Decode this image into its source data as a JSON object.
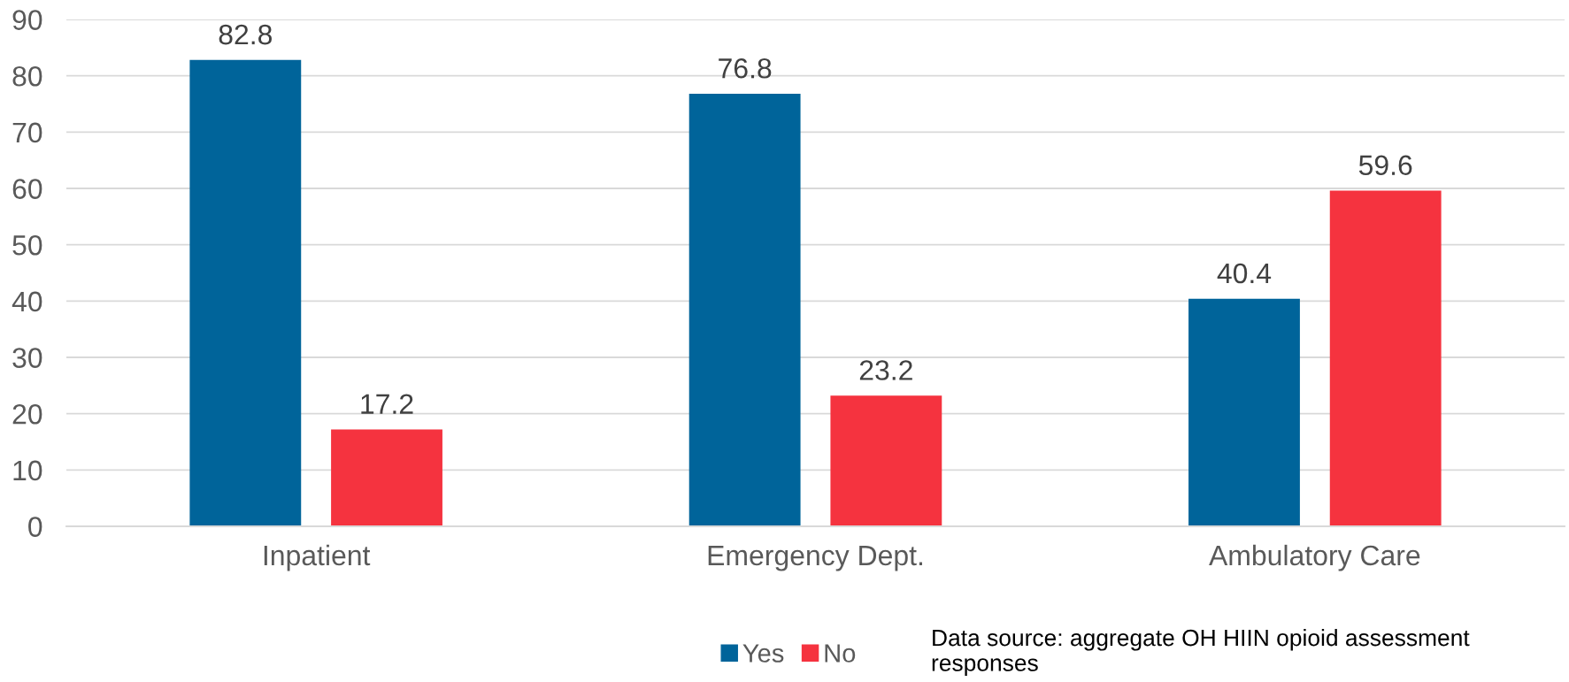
{
  "chart_data": {
    "type": "bar",
    "categories": [
      "Inpatient",
      "Emergency Dept.",
      "Ambulatory Care"
    ],
    "series": [
      {
        "name": "Yes",
        "color": "#00649a",
        "values": [
          82.8,
          76.8,
          40.4
        ]
      },
      {
        "name": "No",
        "color": "#f5333f",
        "values": [
          17.2,
          23.2,
          59.6
        ]
      }
    ],
    "ylim": [
      0,
      90
    ],
    "yticks": [
      0,
      10,
      20,
      30,
      40,
      50,
      60,
      70,
      80,
      90
    ],
    "grid": "y",
    "legend": "bottom",
    "data_labels": true,
    "annotations": [
      "Data source: aggregate OH HIIN opioid assessment responses"
    ]
  }
}
